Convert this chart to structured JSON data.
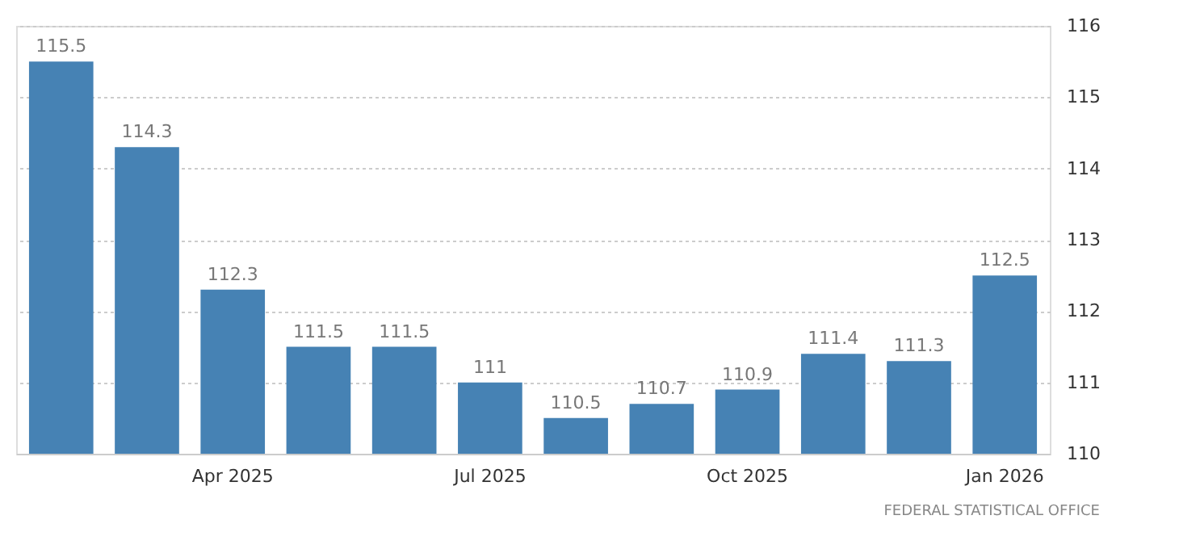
{
  "chart_data": {
    "type": "bar",
    "categories": [
      null,
      null,
      "Apr 2025",
      null,
      null,
      "Jul 2025",
      null,
      null,
      "Oct 2025",
      null,
      null,
      "Jan 2026"
    ],
    "values": [
      115.5,
      114.3,
      112.3,
      111.5,
      111.5,
      111,
      110.5,
      110.7,
      110.9,
      111.4,
      111.3,
      112.5
    ],
    "color": "#4682b4",
    "ylim": [
      110,
      116
    ],
    "yticks": [
      110,
      111,
      112,
      113,
      114,
      115,
      116
    ],
    "grid": "y",
    "data_labels": true,
    "annotations": [
      "FEDERAL STATISTICAL OFFICE"
    ]
  }
}
